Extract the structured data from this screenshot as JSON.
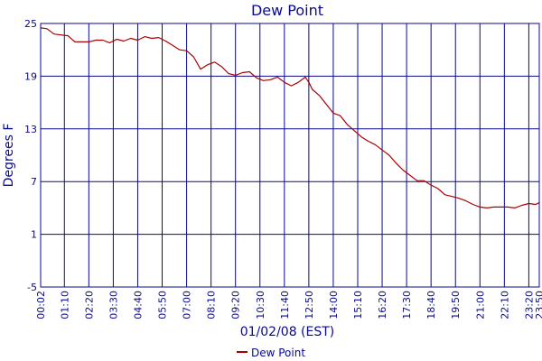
{
  "chart_data": {
    "type": "line",
    "title": "Dew Point",
    "xlabel": "01/02/08 (EST)",
    "ylabel": "Degrees F",
    "ylim": [
      -5,
      25
    ],
    "yticks": [
      -5,
      1,
      7,
      13,
      19,
      25
    ],
    "xlim": [
      "00:02",
      "23:50"
    ],
    "xticks": [
      "00:02",
      "01:10",
      "02:20",
      "03:30",
      "04:40",
      "05:50",
      "07:00",
      "08:10",
      "09:20",
      "10:30",
      "11:40",
      "12:50",
      "14:00",
      "15:10",
      "16:20",
      "17:30",
      "18:40",
      "19:50",
      "21:00",
      "22:10",
      "23:20",
      "23:50"
    ],
    "grid": true,
    "legend": "bottom-center",
    "colors": {
      "series": "#aa0000",
      "grid": "#0a0a8c",
      "text": "#0a0a8c"
    },
    "series": [
      {
        "name": "Dew Point",
        "x": [
          "00:02",
          "00:20",
          "00:40",
          "01:00",
          "01:20",
          "01:40",
          "02:00",
          "02:20",
          "02:40",
          "03:00",
          "03:20",
          "03:40",
          "04:00",
          "04:20",
          "04:40",
          "05:00",
          "05:20",
          "05:40",
          "06:00",
          "06:20",
          "06:40",
          "07:00",
          "07:20",
          "07:40",
          "08:00",
          "08:20",
          "08:40",
          "09:00",
          "09:20",
          "09:40",
          "10:00",
          "10:20",
          "10:40",
          "11:00",
          "11:20",
          "11:40",
          "12:00",
          "12:20",
          "12:40",
          "12:50",
          "13:00",
          "13:20",
          "13:40",
          "14:00",
          "14:20",
          "14:40",
          "15:00",
          "15:20",
          "15:40",
          "16:00",
          "16:20",
          "16:40",
          "17:00",
          "17:20",
          "17:40",
          "18:00",
          "18:20",
          "18:40",
          "19:00",
          "19:20",
          "19:40",
          "20:00",
          "20:20",
          "20:40",
          "21:00",
          "21:20",
          "21:40",
          "22:00",
          "22:20",
          "22:40",
          "23:00",
          "23:20",
          "23:40",
          "23:50"
        ],
        "values": [
          24.5,
          24.4,
          23.8,
          23.7,
          23.6,
          22.9,
          22.9,
          22.9,
          23.1,
          23.1,
          22.8,
          23.2,
          23.0,
          23.3,
          23.1,
          23.5,
          23.3,
          23.4,
          23.0,
          22.5,
          22.0,
          21.9,
          21.2,
          19.8,
          20.3,
          20.6,
          20.1,
          19.3,
          19.1,
          19.4,
          19.5,
          18.8,
          18.5,
          18.6,
          18.9,
          18.3,
          17.9,
          18.3,
          18.9,
          18.3,
          17.5,
          16.8,
          15.8,
          14.8,
          14.5,
          13.5,
          12.8,
          12.1,
          11.6,
          11.2,
          10.6,
          10.0,
          9.1,
          8.3,
          7.7,
          7.1,
          7.1,
          6.6,
          6.2,
          5.5,
          5.3,
          5.1,
          4.8,
          4.4,
          4.1,
          4.0,
          4.1,
          4.1,
          4.1,
          4.0,
          4.3,
          4.5,
          4.4,
          4.6
        ]
      }
    ]
  }
}
